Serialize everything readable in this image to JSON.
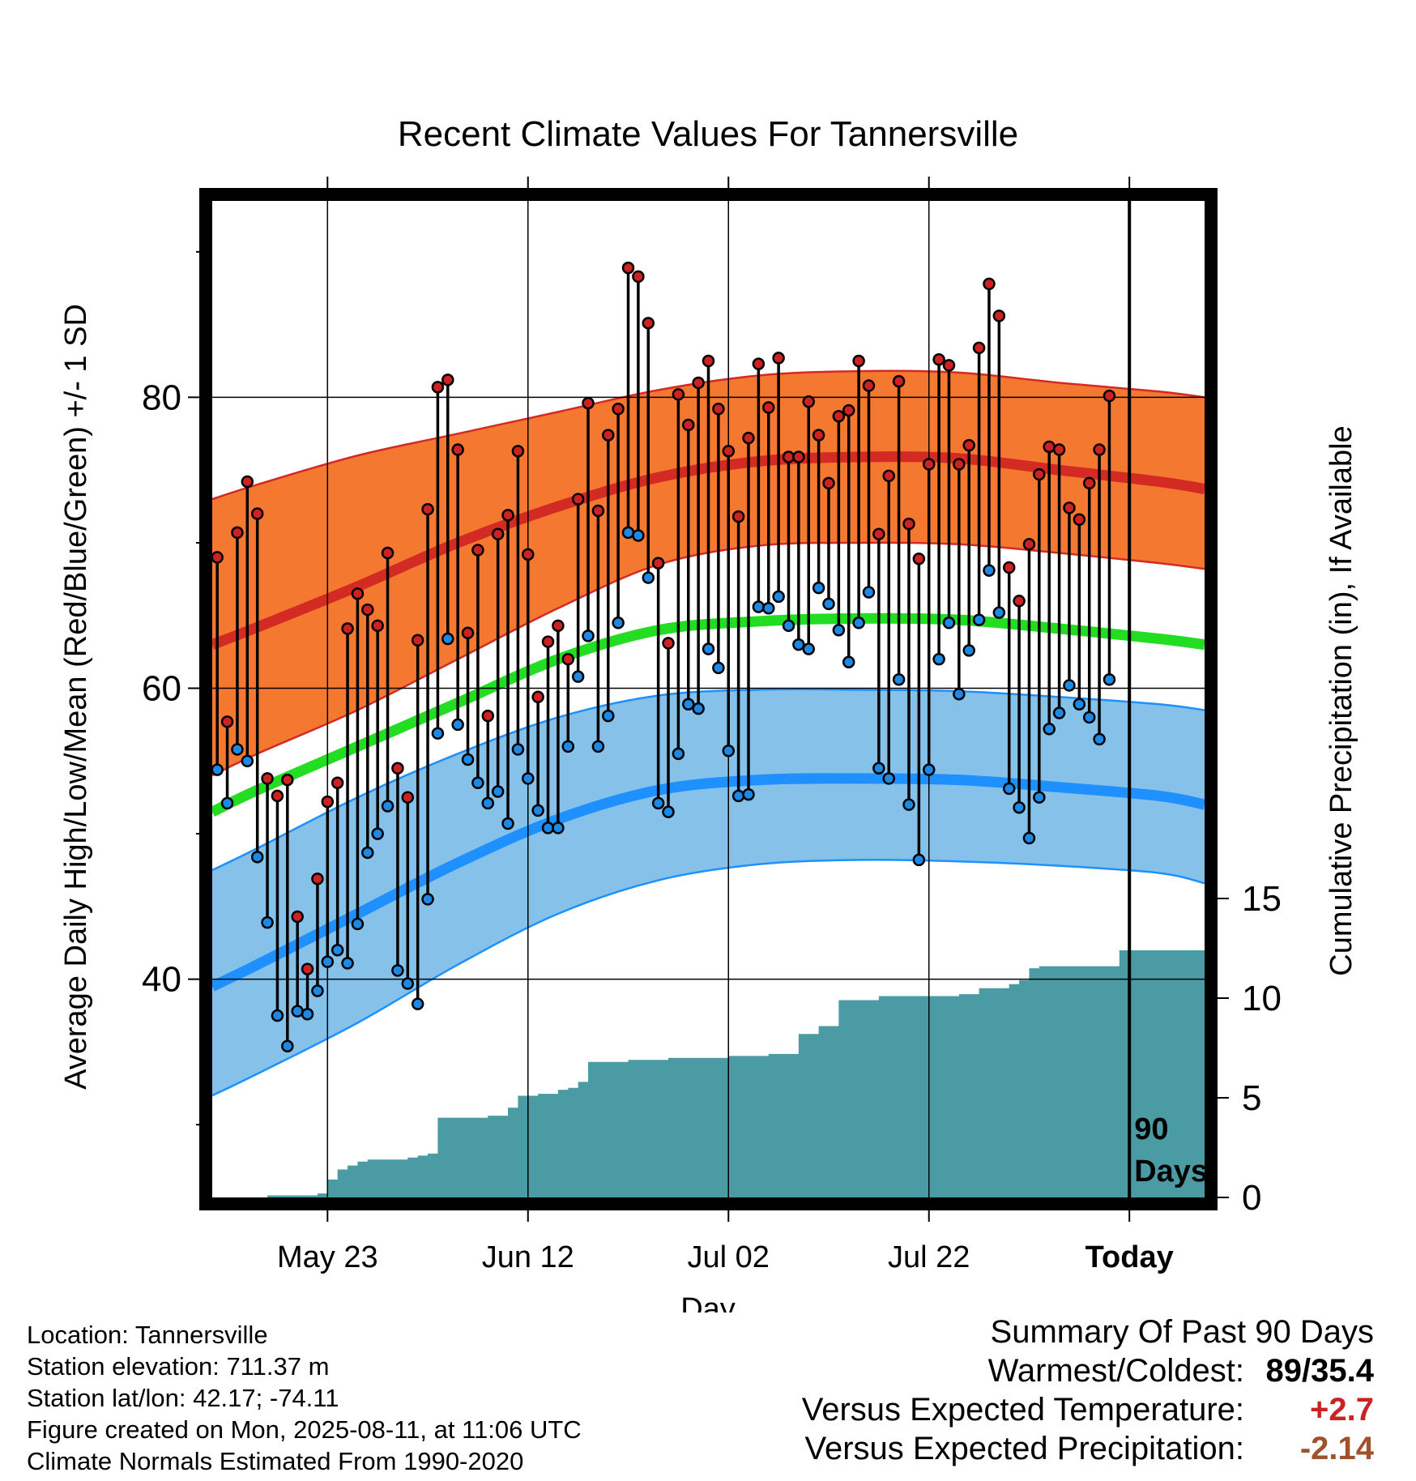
{
  "chart_data": {
    "type": "line",
    "title": "Recent Climate Values For Tannersville",
    "xlabel": "Day",
    "ylabel_left": "Average Daily High/Low/Mean (Red/Blue/Green) +/- 1 SD",
    "ylabel_right": "Cumulative Precipitation (in), If Available",
    "x_ticks": [
      {
        "day": 7,
        "label": "May 23"
      },
      {
        "day": 27,
        "label": "Jun 12"
      },
      {
        "day": 47,
        "label": "Jul 02"
      },
      {
        "day": 67,
        "label": "Jul 22"
      },
      {
        "day": 87,
        "label": "Today"
      }
    ],
    "x_range": [
      -4.5,
      94.5
    ],
    "y_left_ticks": [
      40,
      60,
      80
    ],
    "y_left_range": [
      25,
      93.5
    ],
    "y_right_ticks": [
      0,
      5,
      10,
      15
    ],
    "y_right_range": [
      0,
      50.0
    ],
    "today_marker": {
      "day": 87,
      "label_line1": "90",
      "label_line2": "Days"
    },
    "normals": {
      "day": [
        -4.5,
        0,
        10,
        20,
        30,
        40,
        50,
        60,
        70,
        80,
        90,
        94.5
      ],
      "high_mean": [
        63,
        64.2,
        67,
        70,
        72.5,
        74.5,
        75.6,
        75.9,
        75.8,
        75,
        74.2,
        73.7
      ],
      "high_sd_upper": [
        73,
        74,
        76,
        77.5,
        79,
        80.5,
        81.5,
        81.8,
        81.7,
        81,
        80.4,
        80
      ],
      "high_sd_lower": [
        54,
        55.5,
        58.5,
        62,
        65.5,
        68.5,
        69.8,
        70,
        69.9,
        69.3,
        68.6,
        68.2
      ],
      "mean_mean": [
        51.5,
        53,
        56,
        59,
        62,
        64,
        64.6,
        64.8,
        64.7,
        64.1,
        63.4,
        63
      ],
      "low_mean": [
        39.5,
        41,
        44.5,
        48,
        51,
        53,
        53.7,
        53.8,
        53.7,
        53.2,
        52.6,
        52
      ],
      "low_sd_upper": [
        47.5,
        49,
        52.5,
        55.5,
        58,
        59.5,
        59.9,
        59.9,
        59.8,
        59.4,
        58.9,
        58.5
      ],
      "low_sd_lower": [
        32,
        33.5,
        37,
        41,
        44.5,
        46.8,
        47.9,
        48.2,
        48.1,
        47.8,
        47.3,
        46.6
      ]
    },
    "daily": {
      "start_day": -4,
      "high": [
        69,
        57.7,
        70.7,
        74.2,
        72,
        53.8,
        52.6,
        53.7,
        44.3,
        40.7,
        46.9,
        52.2,
        53.5,
        64.1,
        66.5,
        65.4,
        64.3,
        69.3,
        54.5,
        52.5,
        63.3,
        72.3,
        80.7,
        81.2,
        76.4,
        63.8,
        69.5,
        58.1,
        70.6,
        71.9,
        76.3,
        69.2,
        59.4,
        63.2,
        64.3,
        62,
        73,
        79.6,
        72.2,
        77.4,
        79.2,
        88.9,
        88.3,
        85.1,
        68.6,
        63.1,
        80.2,
        78.1,
        81,
        82.5,
        79.2,
        76.3,
        71.8,
        77.2,
        82.3,
        79.3,
        82.7,
        75.9,
        75.9,
        79.7,
        77.4,
        74.1,
        78.7,
        79.1,
        82.5,
        80.8,
        70.6,
        74.6,
        81.1,
        71.3,
        68.9,
        75.4,
        82.6,
        82.2,
        75.4,
        76.7,
        83.4,
        87.8,
        85.6,
        68.3,
        66,
        69.9,
        74.7,
        76.6,
        76.4,
        72.4,
        71.6,
        74.1,
        76.4,
        80.1
      ],
      "low": [
        54.4,
        52.1,
        55.8,
        55,
        48.4,
        43.9,
        37.5,
        35.4,
        37.8,
        37.6,
        39.2,
        41.2,
        42,
        41.1,
        43.8,
        48.7,
        50,
        51.9,
        40.6,
        39.7,
        38.3,
        45.5,
        56.9,
        63.4,
        57.5,
        55.1,
        53.5,
        52.1,
        52.9,
        50.7,
        55.8,
        53.8,
        51.6,
        50.4,
        50.4,
        56,
        60.8,
        63.6,
        56,
        58.1,
        64.5,
        70.7,
        70.5,
        67.6,
        52.1,
        51.5,
        55.5,
        58.9,
        58.6,
        62.7,
        61.4,
        55.7,
        52.6,
        52.7,
        65.6,
        65.5,
        66.3,
        64.3,
        63,
        62.7,
        66.9,
        65.8,
        64,
        61.8,
        64.5,
        66.6,
        54.5,
        53.8,
        60.6,
        52,
        48.2,
        54.4,
        62,
        64.5,
        59.6,
        62.6,
        64.7,
        68.1,
        65.2,
        53.1,
        51.8,
        49.7,
        52.5,
        57.2,
        58.3,
        60.2,
        58.9,
        58,
        56.5,
        60.6
      ]
    },
    "precipitation": {
      "day": [
        -4,
        0,
        1,
        2,
        3,
        4,
        5,
        6,
        7,
        8,
        9,
        10,
        11,
        12,
        13,
        14,
        15,
        16,
        17,
        18,
        19,
        20,
        21,
        22,
        23,
        24,
        25,
        26,
        27,
        28,
        29,
        30,
        31,
        32,
        33,
        34,
        35,
        36,
        37,
        38,
        39,
        40,
        41,
        42,
        43,
        44,
        45,
        46,
        47,
        48,
        49,
        50,
        51,
        52,
        53,
        54,
        55,
        56,
        57,
        58,
        59,
        60,
        61,
        62,
        63,
        64,
        65,
        66,
        67,
        68,
        69,
        70,
        71,
        72,
        73,
        74,
        75,
        76,
        77,
        78,
        79,
        80,
        81,
        82,
        83,
        84,
        85,
        86,
        87,
        94.5
      ],
      "value": [
        0,
        0,
        0.1,
        0.1,
        0.1,
        0.1,
        0.1,
        0.2,
        0.9,
        1.4,
        1.6,
        1.8,
        1.9,
        1.9,
        1.9,
        1.9,
        2.0,
        2.1,
        2.2,
        4.0,
        4.0,
        4.0,
        4.0,
        4.0,
        4.1,
        4.1,
        4.5,
        5.1,
        5.1,
        5.2,
        5.2,
        5.4,
        5.5,
        5.8,
        6.8,
        6.8,
        6.8,
        6.8,
        6.9,
        6.9,
        6.9,
        6.9,
        7.0,
        7.0,
        7.0,
        7.0,
        7.0,
        7.0,
        7.1,
        7.1,
        7.1,
        7.1,
        7.2,
        7.2,
        7.2,
        8.2,
        8.2,
        8.6,
        8.6,
        9.9,
        9.9,
        9.9,
        9.9,
        10.1,
        10.1,
        10.1,
        10.1,
        10.1,
        10.1,
        10.1,
        10.1,
        10.2,
        10.2,
        10.5,
        10.5,
        10.5,
        10.7,
        10.9,
        11.5,
        11.6,
        11.6,
        11.6,
        11.6,
        11.6,
        11.6,
        11.6,
        11.6,
        12.4,
        12.4,
        12.4
      ],
      "color": "#4a9ba4"
    },
    "colors": {
      "high_band": "#f47830",
      "high_line": "#d42a24",
      "mean_line": "#22dd22",
      "low_band": "#85c1e9",
      "low_line": "#1e90ff",
      "high_dot": "#cc2222",
      "low_dot": "#1e88e5"
    }
  },
  "info": {
    "location": "Location: Tannersville",
    "elevation": "Station elevation: 711.37 m",
    "latlon": "Station lat/lon: 42.17; -74.11",
    "created": "Figure created on Mon, 2025-08-11, at 11:06 UTC",
    "normals": "Climate Normals Estimated From 1990-2020"
  },
  "summary": {
    "title": "Summary Of Past 90 Days",
    "warmest_label": "Warmest/Coldest:",
    "warmest_value": "89/35.4",
    "temp_label": "Versus Expected Temperature:",
    "temp_value": "+2.7",
    "temp_color": "#cc2222",
    "precip_label": "Versus Expected Precipitation:",
    "precip_value": "-2.14",
    "precip_color": "#a0522d"
  }
}
